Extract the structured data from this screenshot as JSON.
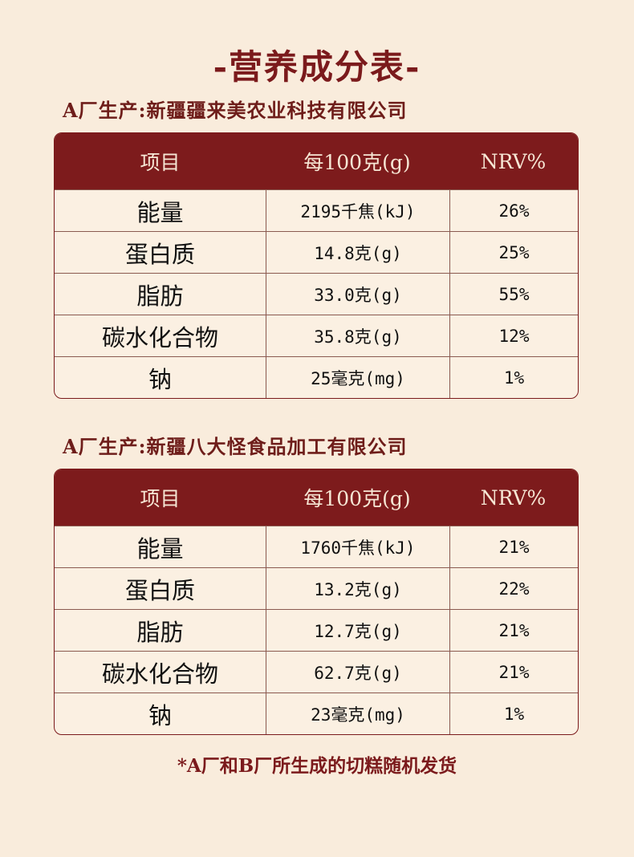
{
  "title": "-营养成分表-",
  "header": {
    "item": "项目",
    "per100": "每100克(g)",
    "nrv": "NRV%"
  },
  "tables": [
    {
      "label": "A厂生产:新疆疆来美农业科技有限公司",
      "rows": [
        {
          "item": "能量",
          "value": "2195千焦(kJ)",
          "nrv": "26%"
        },
        {
          "item": "蛋白质",
          "value": "14.8克(g)",
          "nrv": "25%"
        },
        {
          "item": "脂肪",
          "value": "33.0克(g)",
          "nrv": "55%"
        },
        {
          "item": "碳水化合物",
          "value": "35.8克(g)",
          "nrv": "12%"
        },
        {
          "item": "钠",
          "value": "25毫克(mg)",
          "nrv": "1%"
        }
      ]
    },
    {
      "label": "A厂生产:新疆八大怪食品加工有限公司",
      "rows": [
        {
          "item": "能量",
          "value": "1760千焦(kJ)",
          "nrv": "21%"
        },
        {
          "item": "蛋白质",
          "value": "13.2克(g)",
          "nrv": "22%"
        },
        {
          "item": "脂肪",
          "value": "12.7克(g)",
          "nrv": "21%"
        },
        {
          "item": "碳水化合物",
          "value": "62.7克(g)",
          "nrv": "21%"
        },
        {
          "item": "钠",
          "value": "23毫克(mg)",
          "nrv": "1%"
        }
      ]
    }
  ],
  "footnote": "*A厂和B厂所生成的切糕随机发货"
}
